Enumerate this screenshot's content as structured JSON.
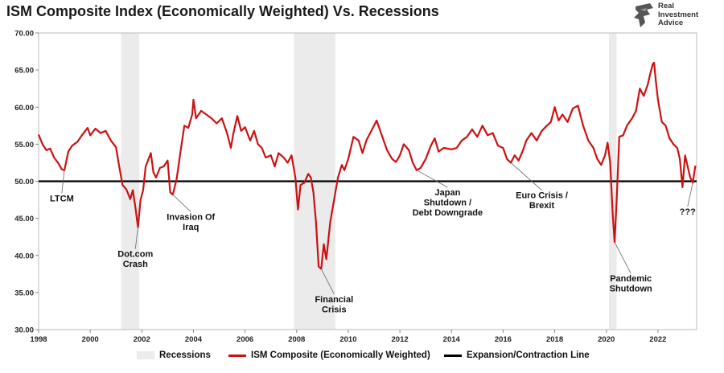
{
  "title": "ISM Composite Index (Economically Weighted) Vs. Recessions",
  "logo": {
    "line1": "Real",
    "line2": "Investment",
    "line3": "Advice"
  },
  "colors": {
    "series": "#cc1111",
    "recession": "#ebebeb",
    "threshold": "#000000"
  },
  "legend": {
    "recessions": "Recessions",
    "series": "ISM Composite (Economically Weighted)",
    "line": "Expansion/Contraction Line"
  },
  "chart_data": {
    "type": "line",
    "title": "ISM Composite Index (Economically Weighted) Vs. Recessions",
    "xlim": [
      1998.0,
      2023.5
    ],
    "ylim": [
      30,
      70
    ],
    "yticks": [
      "30.00",
      "35.00",
      "40.00",
      "45.00",
      "50.00",
      "55.00",
      "60.00",
      "65.00",
      "70.00"
    ],
    "xticks": [
      "1998",
      "2000",
      "2002",
      "2004",
      "2006",
      "2008",
      "2010",
      "2012",
      "2014",
      "2016",
      "2018",
      "2020",
      "2022"
    ],
    "grid": "horizontal",
    "legend_position": "bottom",
    "threshold": 50,
    "recessions": [
      [
        2001.2,
        2001.9
      ],
      [
        2007.9,
        2009.5
      ],
      [
        2020.1,
        2020.4
      ]
    ],
    "series": [
      {
        "name": "ISM Composite (Economically Weighted)",
        "points": [
          [
            1998.0,
            56.3
          ],
          [
            1998.15,
            55.0
          ],
          [
            1998.3,
            54.2
          ],
          [
            1998.45,
            54.4
          ],
          [
            1998.6,
            53.2
          ],
          [
            1998.75,
            52.5
          ],
          [
            1998.9,
            51.6
          ],
          [
            1999.0,
            51.5
          ],
          [
            1999.15,
            54.0
          ],
          [
            1999.3,
            54.8
          ],
          [
            1999.5,
            55.3
          ],
          [
            1999.7,
            56.3
          ],
          [
            1999.9,
            57.2
          ],
          [
            2000.0,
            56.2
          ],
          [
            2000.2,
            57.1
          ],
          [
            2000.4,
            56.5
          ],
          [
            2000.6,
            56.8
          ],
          [
            2000.8,
            55.5
          ],
          [
            2001.0,
            54.6
          ],
          [
            2001.1,
            52.5
          ],
          [
            2001.25,
            49.5
          ],
          [
            2001.4,
            48.9
          ],
          [
            2001.55,
            47.6
          ],
          [
            2001.65,
            48.8
          ],
          [
            2001.75,
            46.5
          ],
          [
            2001.85,
            43.8
          ],
          [
            2001.95,
            47.5
          ],
          [
            2002.05,
            48.8
          ],
          [
            2002.15,
            52.0
          ],
          [
            2002.35,
            53.8
          ],
          [
            2002.45,
            51.2
          ],
          [
            2002.55,
            50.5
          ],
          [
            2002.7,
            51.8
          ],
          [
            2002.85,
            52.0
          ],
          [
            2003.0,
            52.8
          ],
          [
            2003.1,
            48.5
          ],
          [
            2003.2,
            48.2
          ],
          [
            2003.35,
            50.3
          ],
          [
            2003.5,
            54.0
          ],
          [
            2003.65,
            57.5
          ],
          [
            2003.8,
            57.2
          ],
          [
            2003.95,
            59.0
          ],
          [
            2004.0,
            61.0
          ],
          [
            2004.1,
            58.5
          ],
          [
            2004.3,
            59.5
          ],
          [
            2004.5,
            59.0
          ],
          [
            2004.7,
            58.5
          ],
          [
            2004.9,
            57.8
          ],
          [
            2005.1,
            58.5
          ],
          [
            2005.3,
            56.5
          ],
          [
            2005.45,
            54.5
          ],
          [
            2005.55,
            56.5
          ],
          [
            2005.7,
            58.8
          ],
          [
            2005.85,
            56.8
          ],
          [
            2006.0,
            57.3
          ],
          [
            2006.2,
            55.5
          ],
          [
            2006.35,
            56.8
          ],
          [
            2006.5,
            55.0
          ],
          [
            2006.65,
            54.5
          ],
          [
            2006.8,
            53.2
          ],
          [
            2007.0,
            53.5
          ],
          [
            2007.15,
            52.0
          ],
          [
            2007.3,
            53.8
          ],
          [
            2007.5,
            53.2
          ],
          [
            2007.65,
            52.5
          ],
          [
            2007.8,
            53.5
          ],
          [
            2007.95,
            50.5
          ],
          [
            2008.05,
            46.2
          ],
          [
            2008.15,
            49.5
          ],
          [
            2008.3,
            49.8
          ],
          [
            2008.45,
            51.0
          ],
          [
            2008.55,
            50.5
          ],
          [
            2008.65,
            48.5
          ],
          [
            2008.75,
            44.5
          ],
          [
            2008.85,
            38.5
          ],
          [
            2008.95,
            38.2
          ],
          [
            2009.05,
            41.5
          ],
          [
            2009.15,
            39.5
          ],
          [
            2009.3,
            44.5
          ],
          [
            2009.45,
            47.5
          ],
          [
            2009.6,
            50.5
          ],
          [
            2009.75,
            52.2
          ],
          [
            2009.85,
            51.5
          ],
          [
            2010.0,
            53.0
          ],
          [
            2010.2,
            56.0
          ],
          [
            2010.4,
            55.5
          ],
          [
            2010.55,
            53.8
          ],
          [
            2010.7,
            55.5
          ],
          [
            2010.85,
            56.5
          ],
          [
            2011.0,
            57.5
          ],
          [
            2011.1,
            58.2
          ],
          [
            2011.3,
            56.2
          ],
          [
            2011.5,
            54.2
          ],
          [
            2011.7,
            53.0
          ],
          [
            2011.85,
            52.6
          ],
          [
            2012.0,
            53.5
          ],
          [
            2012.15,
            55.0
          ],
          [
            2012.35,
            54.2
          ],
          [
            2012.5,
            52.5
          ],
          [
            2012.65,
            51.5
          ],
          [
            2012.8,
            51.8
          ],
          [
            2013.0,
            53.0
          ],
          [
            2013.2,
            54.8
          ],
          [
            2013.35,
            55.8
          ],
          [
            2013.5,
            54.0
          ],
          [
            2013.7,
            54.5
          ],
          [
            2014.0,
            54.3
          ],
          [
            2014.2,
            54.5
          ],
          [
            2014.4,
            55.5
          ],
          [
            2014.6,
            56.0
          ],
          [
            2014.8,
            57.0
          ],
          [
            2015.0,
            56.0
          ],
          [
            2015.2,
            57.5
          ],
          [
            2015.4,
            56.2
          ],
          [
            2015.6,
            56.5
          ],
          [
            2015.8,
            54.8
          ],
          [
            2016.0,
            54.5
          ],
          [
            2016.15,
            53.0
          ],
          [
            2016.3,
            52.5
          ],
          [
            2016.45,
            53.5
          ],
          [
            2016.6,
            52.8
          ],
          [
            2016.75,
            54.0
          ],
          [
            2016.9,
            55.5
          ],
          [
            2017.1,
            56.5
          ],
          [
            2017.3,
            55.5
          ],
          [
            2017.5,
            56.8
          ],
          [
            2017.7,
            57.5
          ],
          [
            2017.85,
            58.0
          ],
          [
            2018.0,
            60.0
          ],
          [
            2018.15,
            58.2
          ],
          [
            2018.3,
            59.0
          ],
          [
            2018.5,
            58.0
          ],
          [
            2018.7,
            59.8
          ],
          [
            2018.9,
            60.2
          ],
          [
            2019.1,
            57.5
          ],
          [
            2019.3,
            55.5
          ],
          [
            2019.5,
            54.5
          ],
          [
            2019.65,
            53.0
          ],
          [
            2019.8,
            52.2
          ],
          [
            2019.95,
            53.5
          ],
          [
            2020.05,
            55.2
          ],
          [
            2020.15,
            52.5
          ],
          [
            2020.25,
            45.5
          ],
          [
            2020.32,
            41.8
          ],
          [
            2020.4,
            47.5
          ],
          [
            2020.5,
            56.0
          ],
          [
            2020.65,
            56.2
          ],
          [
            2020.8,
            57.5
          ],
          [
            2021.0,
            58.5
          ],
          [
            2021.15,
            59.5
          ],
          [
            2021.3,
            62.5
          ],
          [
            2021.45,
            61.5
          ],
          [
            2021.6,
            63.0
          ],
          [
            2021.7,
            64.5
          ],
          [
            2021.8,
            65.8
          ],
          [
            2021.85,
            66.0
          ],
          [
            2021.92,
            63.5
          ],
          [
            2022.0,
            61.0
          ],
          [
            2022.15,
            58.0
          ],
          [
            2022.3,
            57.5
          ],
          [
            2022.45,
            55.8
          ],
          [
            2022.6,
            55.0
          ],
          [
            2022.75,
            54.5
          ],
          [
            2022.85,
            53.0
          ],
          [
            2022.95,
            49.2
          ],
          [
            2023.05,
            53.5
          ],
          [
            2023.15,
            52.0
          ],
          [
            2023.25,
            50.5
          ],
          [
            2023.35,
            49.8
          ],
          [
            2023.45,
            52.1
          ]
        ]
      },
      {
        "name": "Expansion/Contraction Line",
        "points": [
          [
            1998.0,
            50
          ],
          [
            2023.5,
            50
          ]
        ]
      }
    ],
    "annotations": [
      {
        "lines": [
          "LTCM"
        ],
        "x": 1999.0,
        "y": 51.6,
        "tx": 1998.9,
        "ty": 47.3
      },
      {
        "lines": [
          "Dot.com",
          "Crash"
        ],
        "x": 2001.85,
        "y": 43.8,
        "tx": 2001.75,
        "ty": 39.8
      },
      {
        "lines": [
          "Invasion Of",
          "Iraq"
        ],
        "x": 2003.2,
        "y": 48.2,
        "tx": 2003.9,
        "ty": 44.8
      },
      {
        "lines": [
          "Financial",
          "Crisis"
        ],
        "x": 2008.95,
        "y": 38.2,
        "tx": 2009.45,
        "ty": 33.7
      },
      {
        "lines": [
          "Japan",
          "Shutdown /",
          "Debt Downgrade"
        ],
        "x": 2012.65,
        "y": 51.5,
        "tx": 2013.85,
        "ty": 48.1
      },
      {
        "lines": [
          "Euro Crisis /",
          "Brexit"
        ],
        "x": 2016.3,
        "y": 52.5,
        "tx": 2017.5,
        "ty": 47.7
      },
      {
        "lines": [
          "Pandemic",
          "Shutdown"
        ],
        "x": 2020.32,
        "y": 41.8,
        "tx": 2020.95,
        "ty": 36.5
      },
      {
        "lines": [
          "???"
        ],
        "x": 2023.35,
        "y": 49.8,
        "tx": 2023.15,
        "ty": 45.5
      }
    ]
  }
}
